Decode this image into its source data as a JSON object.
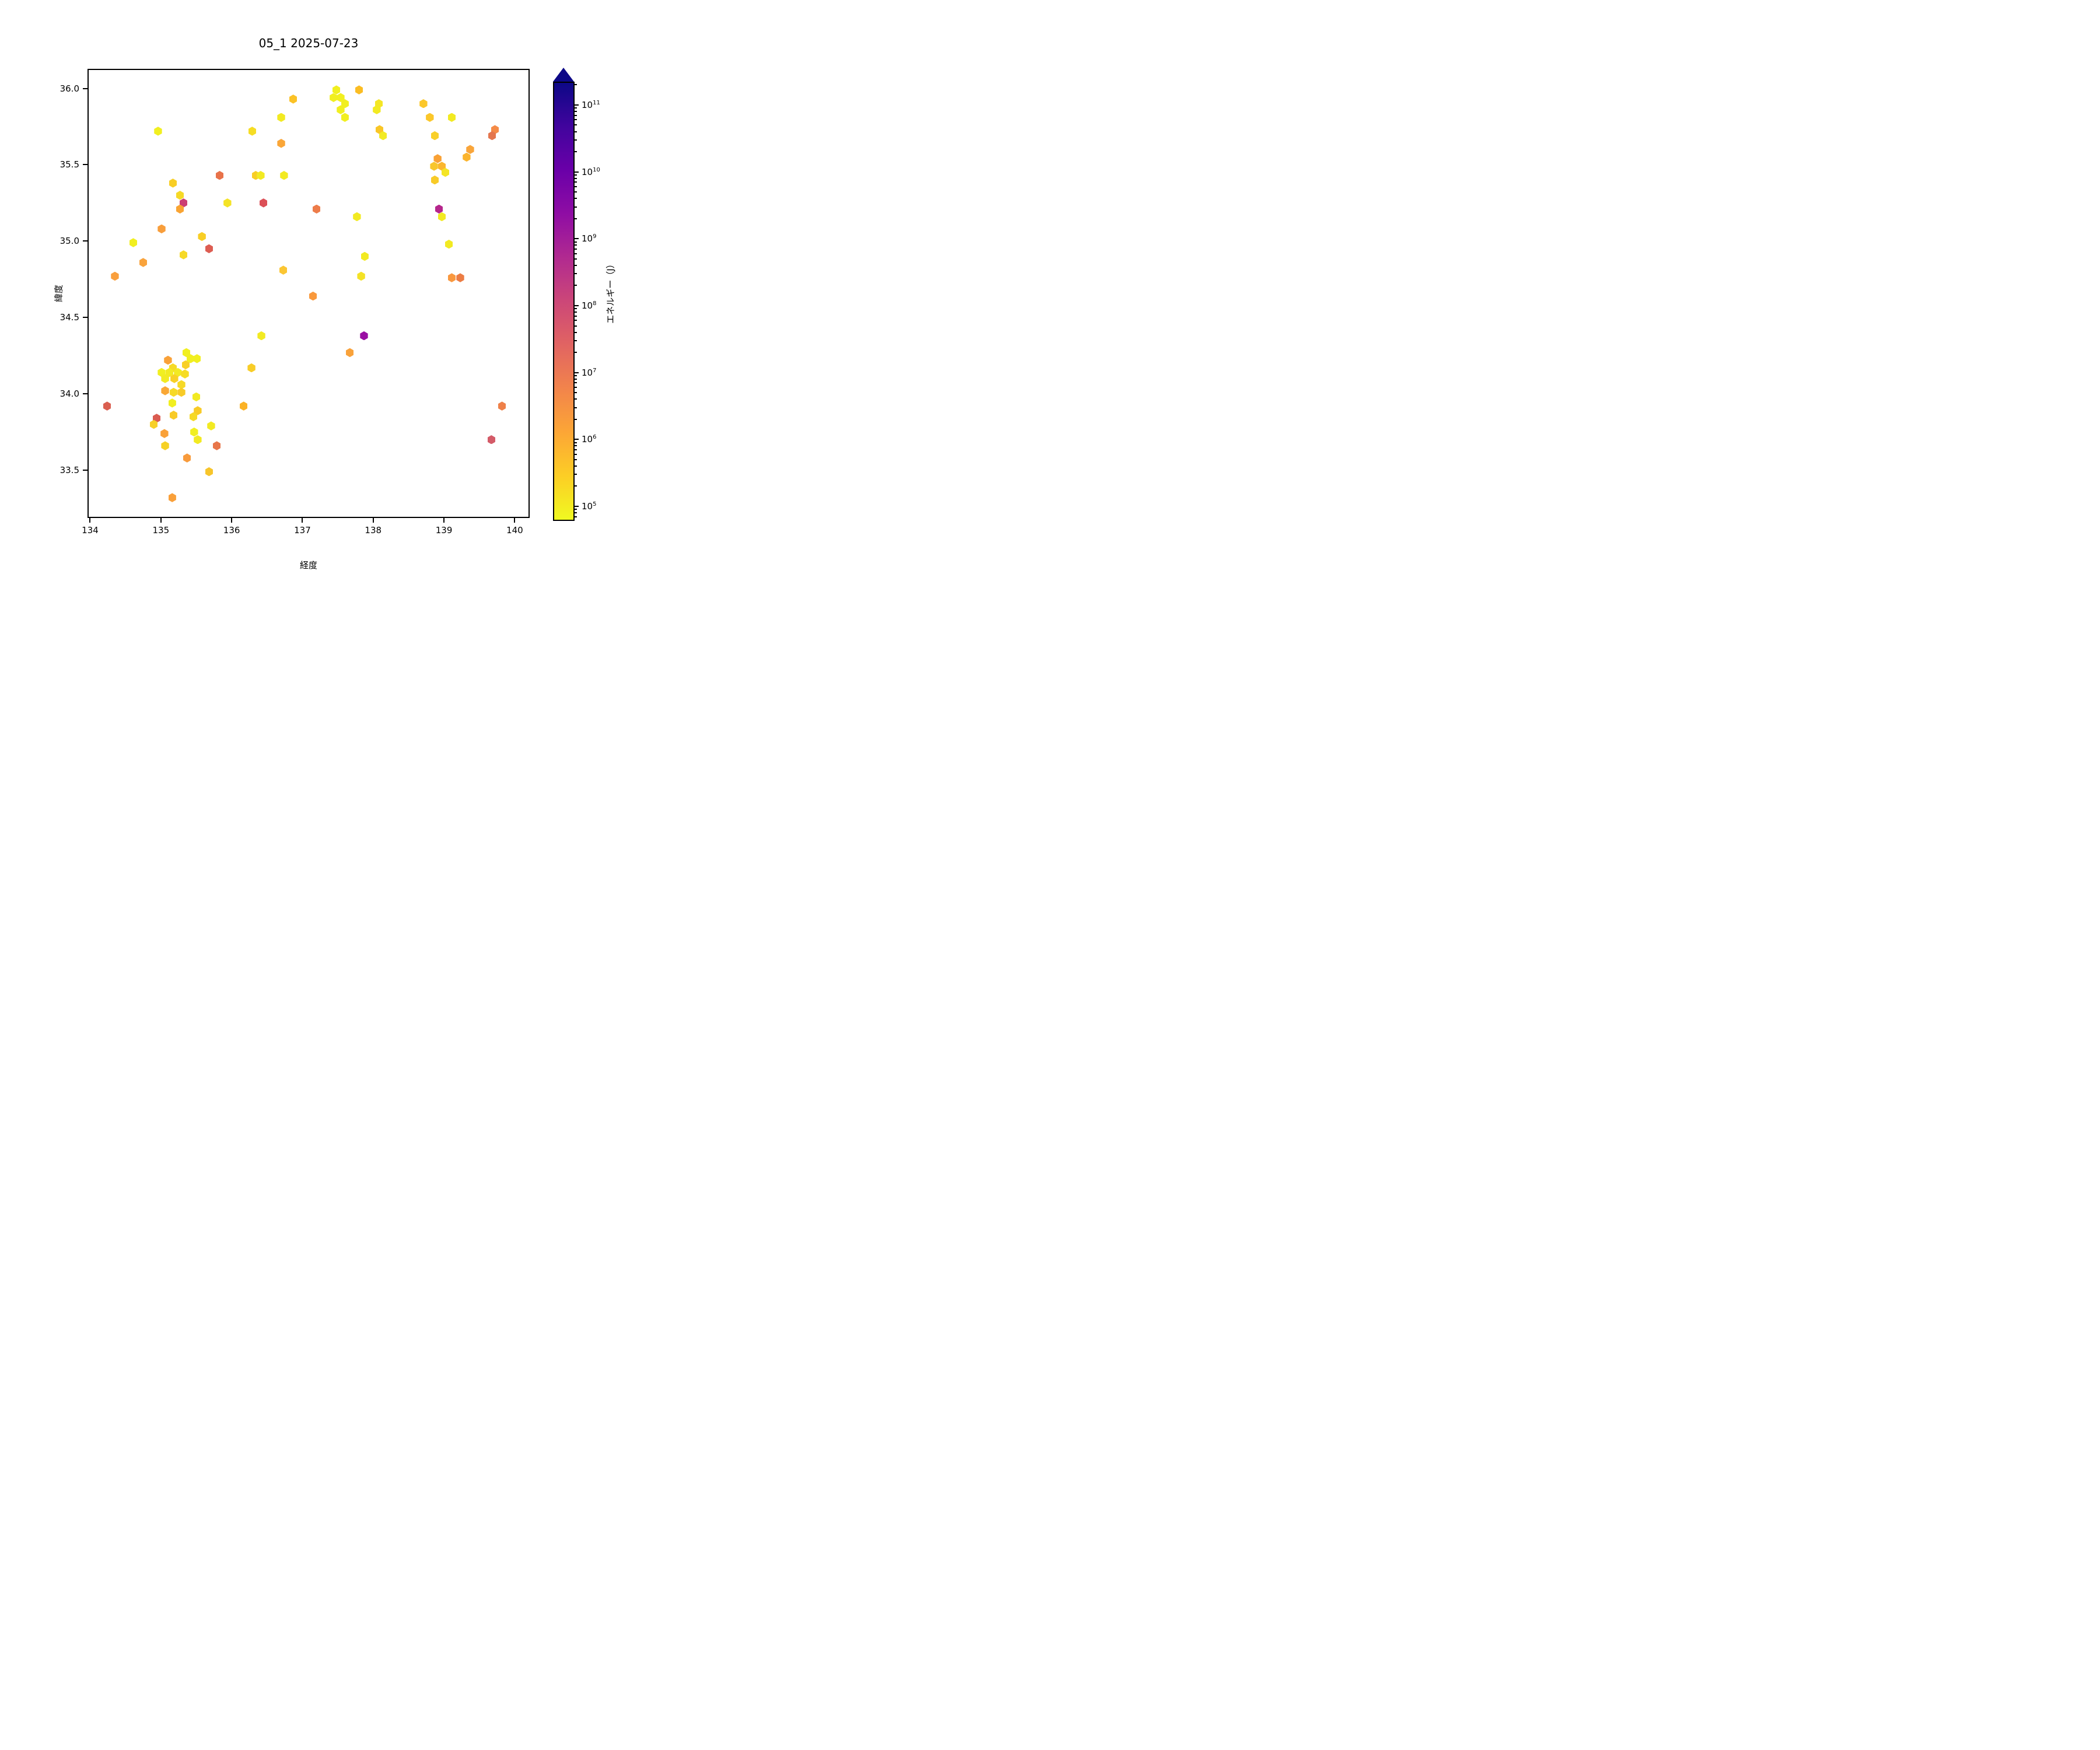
{
  "title": "05_1 2025-07-23",
  "chart_data": {
    "type": "scatter",
    "subtype": "hexbin-markers",
    "title": "05_1 2025-07-23",
    "xlabel": "経度",
    "ylabel": "緯度",
    "xlim": [
      133.963,
      140.211
    ],
    "ylim": [
      33.187,
      36.128
    ],
    "x_ticks": [
      134,
      135,
      136,
      137,
      138,
      139,
      140
    ],
    "y_ticks": [
      33.5,
      34.0,
      34.5,
      35.0,
      35.5,
      36.0
    ],
    "grid": false,
    "legend": "none",
    "colorbar": {
      "label": "エネルギー（J）",
      "scale": "log",
      "unit": "J",
      "tick_exponents": [
        5,
        6,
        7,
        8,
        9,
        10,
        11
      ],
      "value_min": 60000.0,
      "value_max": 220000000000.0,
      "extend": "max",
      "extend_color": "#0d0887",
      "colormap": "plasma_r",
      "gradient_stops": [
        {
          "pos": 0.0,
          "color": "#0d0887"
        },
        {
          "pos": 0.1,
          "color": "#41049d"
        },
        {
          "pos": 0.2,
          "color": "#6a00a8"
        },
        {
          "pos": 0.3,
          "color": "#8f0da4"
        },
        {
          "pos": 0.4,
          "color": "#b12a90"
        },
        {
          "pos": 0.5,
          "color": "#cc4778"
        },
        {
          "pos": 0.6,
          "color": "#e16462"
        },
        {
          "pos": 0.7,
          "color": "#f2844b"
        },
        {
          "pos": 0.8,
          "color": "#fca636"
        },
        {
          "pos": 0.9,
          "color": "#fcce25"
        },
        {
          "pos": 1.0,
          "color": "#f0f921"
        }
      ]
    },
    "points": [
      {
        "lon": 137.48,
        "lat": 35.99,
        "color": "#f1ef20"
      },
      {
        "lon": 137.44,
        "lat": 35.94,
        "color": "#f1ef20"
      },
      {
        "lon": 137.54,
        "lat": 35.94,
        "color": "#f1ef20"
      },
      {
        "lon": 137.6,
        "lat": 35.9,
        "color": "#f1ef20"
      },
      {
        "lon": 137.54,
        "lat": 35.86,
        "color": "#f1ef20"
      },
      {
        "lon": 137.6,
        "lat": 35.81,
        "color": "#f1ef20"
      },
      {
        "lon": 137.8,
        "lat": 35.99,
        "color": "#fbbd23"
      },
      {
        "lon": 136.87,
        "lat": 35.93,
        "color": "#fbc226"
      },
      {
        "lon": 138.08,
        "lat": 35.9,
        "color": "#f4e625"
      },
      {
        "lon": 138.05,
        "lat": 35.86,
        "color": "#f2ea22"
      },
      {
        "lon": 138.71,
        "lat": 35.9,
        "color": "#fbc72a"
      },
      {
        "lon": 138.8,
        "lat": 35.81,
        "color": "#fbc72a"
      },
      {
        "lon": 139.11,
        "lat": 35.81,
        "color": "#f2ea22"
      },
      {
        "lon": 138.87,
        "lat": 35.69,
        "color": "#f9d02a"
      },
      {
        "lon": 138.09,
        "lat": 35.73,
        "color": "#f9c627"
      },
      {
        "lon": 138.14,
        "lat": 35.69,
        "color": "#f2ea25"
      },
      {
        "lon": 139.72,
        "lat": 35.73,
        "color": "#f58b47"
      },
      {
        "lon": 139.68,
        "lat": 35.69,
        "color": "#e4764e"
      },
      {
        "lon": 134.96,
        "lat": 35.72,
        "color": "#f1ef20"
      },
      {
        "lon": 136.7,
        "lat": 35.81,
        "color": "#f2ea22"
      },
      {
        "lon": 136.29,
        "lat": 35.72,
        "color": "#f6dd24"
      },
      {
        "lon": 136.7,
        "lat": 35.64,
        "color": "#faa638"
      },
      {
        "lon": 136.45,
        "lat": 35.25,
        "color": "#dc5057"
      },
      {
        "lon": 135.83,
        "lat": 35.43,
        "color": "#e8724a"
      },
      {
        "lon": 136.34,
        "lat": 35.43,
        "color": "#f8ce25"
      },
      {
        "lon": 136.41,
        "lat": 35.43,
        "color": "#f2ea22"
      },
      {
        "lon": 136.74,
        "lat": 35.43,
        "color": "#f2ea22"
      },
      {
        "lon": 135.17,
        "lat": 35.38,
        "color": "#f8ce25"
      },
      {
        "lon": 135.27,
        "lat": 35.3,
        "color": "#f6d926"
      },
      {
        "lon": 135.32,
        "lat": 35.25,
        "color": "#cb3e74"
      },
      {
        "lon": 135.27,
        "lat": 35.21,
        "color": "#f9a433"
      },
      {
        "lon": 135.94,
        "lat": 35.25,
        "color": "#f4e326"
      },
      {
        "lon": 137.2,
        "lat": 35.21,
        "color": "#ed7c4a"
      },
      {
        "lon": 137.77,
        "lat": 35.16,
        "color": "#f2ea22"
      },
      {
        "lon": 138.93,
        "lat": 35.21,
        "color": "#b5268c"
      },
      {
        "lon": 138.97,
        "lat": 35.16,
        "color": "#f2ea22"
      },
      {
        "lon": 139.07,
        "lat": 34.98,
        "color": "#f2ea22"
      },
      {
        "lon": 135.01,
        "lat": 35.08,
        "color": "#f89e3b"
      },
      {
        "lon": 134.61,
        "lat": 34.99,
        "color": "#f1ef20"
      },
      {
        "lon": 135.58,
        "lat": 35.03,
        "color": "#f8ce25"
      },
      {
        "lon": 135.68,
        "lat": 34.95,
        "color": "#dd5d52"
      },
      {
        "lon": 135.32,
        "lat": 34.91,
        "color": "#f6d928"
      },
      {
        "lon": 134.75,
        "lat": 34.86,
        "color": "#f9a33c"
      },
      {
        "lon": 134.35,
        "lat": 34.77,
        "color": "#f99f3d"
      },
      {
        "lon": 136.73,
        "lat": 34.81,
        "color": "#fbc633"
      },
      {
        "lon": 137.88,
        "lat": 34.9,
        "color": "#f2ea22"
      },
      {
        "lon": 137.83,
        "lat": 34.77,
        "color": "#f4e226"
      },
      {
        "lon": 139.11,
        "lat": 34.76,
        "color": "#f9983f"
      },
      {
        "lon": 139.23,
        "lat": 34.76,
        "color": "#ec7c44"
      },
      {
        "lon": 137.15,
        "lat": 34.64,
        "color": "#f9993c"
      },
      {
        "lon": 136.42,
        "lat": 34.38,
        "color": "#f2ea22"
      },
      {
        "lon": 137.87,
        "lat": 34.38,
        "color": "#9a0fa3"
      },
      {
        "lon": 137.67,
        "lat": 34.27,
        "color": "#f9a23a"
      },
      {
        "lon": 136.28,
        "lat": 34.17,
        "color": "#f8cd27"
      },
      {
        "lon": 135.1,
        "lat": 34.22,
        "color": "#f9a138"
      },
      {
        "lon": 135.36,
        "lat": 34.27,
        "color": "#f1ef20"
      },
      {
        "lon": 135.42,
        "lat": 34.23,
        "color": "#f1ef20"
      },
      {
        "lon": 135.51,
        "lat": 34.23,
        "color": "#f1ef20"
      },
      {
        "lon": 135.35,
        "lat": 34.19,
        "color": "#f8d026"
      },
      {
        "lon": 135.17,
        "lat": 34.17,
        "color": "#f6da25"
      },
      {
        "lon": 135.01,
        "lat": 34.14,
        "color": "#f1ef20"
      },
      {
        "lon": 135.12,
        "lat": 34.14,
        "color": "#f2ea22"
      },
      {
        "lon": 135.24,
        "lat": 34.14,
        "color": "#f2ea22"
      },
      {
        "lon": 135.34,
        "lat": 34.13,
        "color": "#f6dc25"
      },
      {
        "lon": 135.06,
        "lat": 34.1,
        "color": "#f2ea22"
      },
      {
        "lon": 135.19,
        "lat": 34.1,
        "color": "#f8d026"
      },
      {
        "lon": 135.29,
        "lat": 34.06,
        "color": "#f6d926"
      },
      {
        "lon": 135.06,
        "lat": 34.02,
        "color": "#f9a735"
      },
      {
        "lon": 135.18,
        "lat": 34.01,
        "color": "#f6d926"
      },
      {
        "lon": 135.29,
        "lat": 34.01,
        "color": "#f8cb27"
      },
      {
        "lon": 135.5,
        "lat": 33.98,
        "color": "#f2ea22"
      },
      {
        "lon": 135.16,
        "lat": 33.94,
        "color": "#f1ef20"
      },
      {
        "lon": 136.17,
        "lat": 33.92,
        "color": "#fbb226"
      },
      {
        "lon": 134.24,
        "lat": 33.92,
        "color": "#da5f50"
      },
      {
        "lon": 134.94,
        "lat": 33.84,
        "color": "#da5c51"
      },
      {
        "lon": 135.18,
        "lat": 33.86,
        "color": "#f8cb27"
      },
      {
        "lon": 135.52,
        "lat": 33.89,
        "color": "#f8cb27"
      },
      {
        "lon": 135.46,
        "lat": 33.85,
        "color": "#f6d926"
      },
      {
        "lon": 134.9,
        "lat": 33.8,
        "color": "#f7d028"
      },
      {
        "lon": 135.71,
        "lat": 33.79,
        "color": "#f2ea22"
      },
      {
        "lon": 135.05,
        "lat": 33.74,
        "color": "#f9a138"
      },
      {
        "lon": 135.47,
        "lat": 33.75,
        "color": "#f1ef20"
      },
      {
        "lon": 135.52,
        "lat": 33.7,
        "color": "#f2ea22"
      },
      {
        "lon": 135.06,
        "lat": 33.66,
        "color": "#f6d125"
      },
      {
        "lon": 135.79,
        "lat": 33.66,
        "color": "#e8764a"
      },
      {
        "lon": 135.37,
        "lat": 33.58,
        "color": "#f89b3c"
      },
      {
        "lon": 135.68,
        "lat": 33.49,
        "color": "#f7c52b"
      },
      {
        "lon": 135.16,
        "lat": 33.32,
        "color": "#f9a03a"
      },
      {
        "lon": 138.91,
        "lat": 35.54,
        "color": "#f9a135"
      },
      {
        "lon": 138.86,
        "lat": 35.49,
        "color": "#f8c62c"
      },
      {
        "lon": 138.97,
        "lat": 35.49,
        "color": "#fbb62e"
      },
      {
        "lon": 139.02,
        "lat": 35.45,
        "color": "#f4e525"
      },
      {
        "lon": 138.87,
        "lat": 35.4,
        "color": "#f8cb28"
      },
      {
        "lon": 139.37,
        "lat": 35.6,
        "color": "#f9a53a"
      },
      {
        "lon": 139.32,
        "lat": 35.55,
        "color": "#fbb42d"
      },
      {
        "lon": 139.82,
        "lat": 33.92,
        "color": "#ee8049"
      },
      {
        "lon": 139.67,
        "lat": 33.7,
        "color": "#d45b68"
      }
    ]
  }
}
